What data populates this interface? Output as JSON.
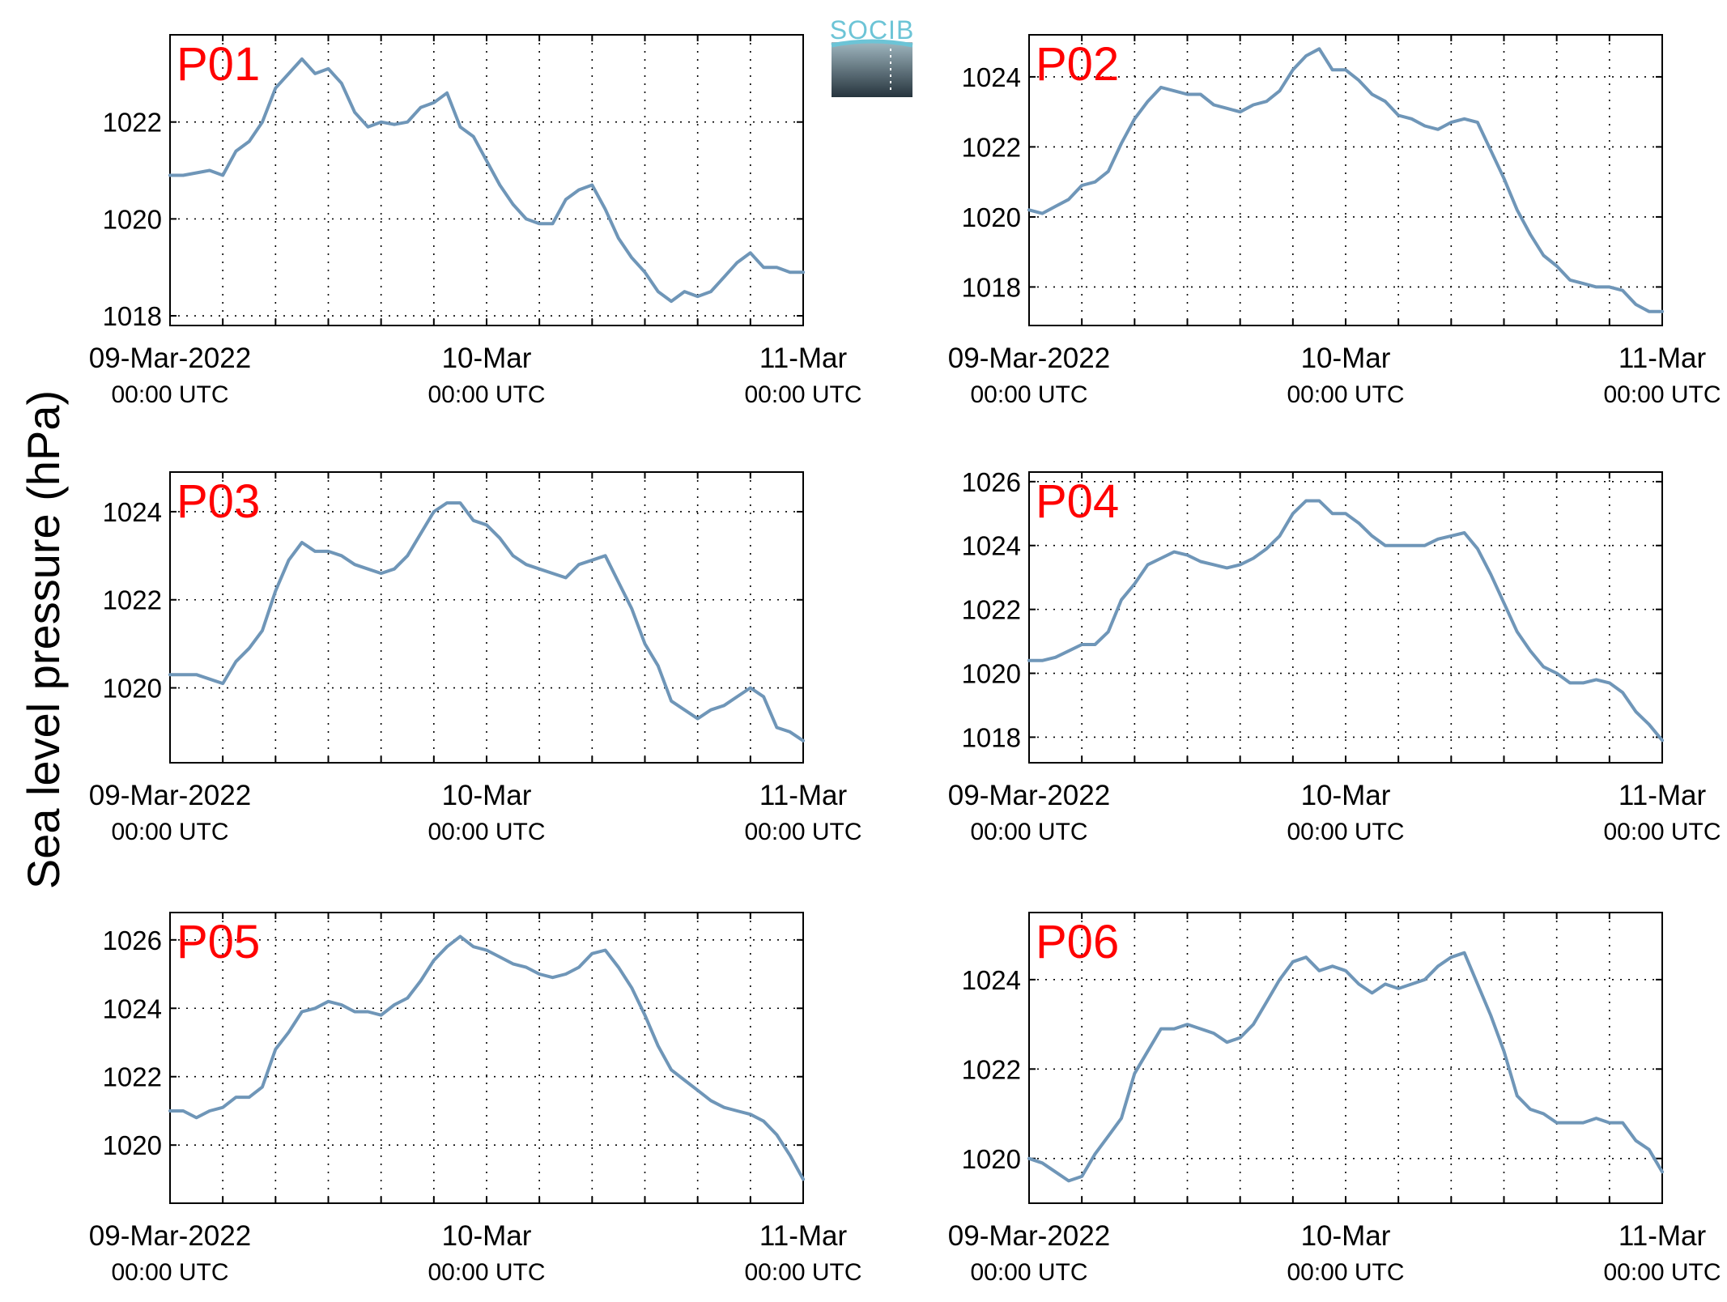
{
  "ylabel": "Sea level pressure (hPa)",
  "logo": {
    "text": "SOCIB"
  },
  "colors": {
    "line": "#6f96b8",
    "label": "#ff0000",
    "grid": "#000000"
  },
  "x_ticks": [
    {
      "x": 0,
      "line1": "09-Mar-2022",
      "line2": "00:00 UTC"
    },
    {
      "x": 24,
      "line1": "10-Mar",
      "line2": "00:00 UTC"
    },
    {
      "x": 48,
      "line1": "11-Mar",
      "line2": "00:00 UTC"
    }
  ],
  "chart_data": [
    {
      "type": "line",
      "label": "P01",
      "xlim": [
        0,
        48
      ],
      "ylim": [
        1017.8,
        1023.8
      ],
      "yticks": [
        1018,
        1020,
        1022
      ],
      "x": [
        0,
        1,
        2,
        3,
        4,
        5,
        6,
        7,
        8,
        9,
        10,
        11,
        12,
        13,
        14,
        15,
        16,
        17,
        18,
        19,
        20,
        21,
        22,
        23,
        24,
        25,
        26,
        27,
        28,
        29,
        30,
        31,
        32,
        33,
        34,
        35,
        36,
        37,
        38,
        39,
        40,
        41,
        42,
        43,
        44,
        45,
        46,
        47,
        48
      ],
      "y": [
        1020.9,
        1020.9,
        1020.95,
        1021.0,
        1020.9,
        1021.4,
        1021.6,
        1022.0,
        1022.7,
        1023.0,
        1023.3,
        1023.0,
        1023.1,
        1022.8,
        1022.2,
        1021.9,
        1022.0,
        1021.95,
        1022.0,
        1022.3,
        1022.4,
        1022.6,
        1021.9,
        1021.7,
        1021.2,
        1020.7,
        1020.3,
        1020.0,
        1019.9,
        1019.9,
        1020.4,
        1020.6,
        1020.7,
        1020.2,
        1019.6,
        1019.2,
        1018.9,
        1018.5,
        1018.3,
        1018.5,
        1018.4,
        1018.5,
        1018.8,
        1019.1,
        1019.3,
        1019.0,
        1019.0,
        1018.9,
        1018.9
      ]
    },
    {
      "type": "line",
      "label": "P02",
      "xlim": [
        0,
        48
      ],
      "ylim": [
        1016.9,
        1025.2
      ],
      "yticks": [
        1018,
        1020,
        1022,
        1024
      ],
      "x": [
        0,
        1,
        2,
        3,
        4,
        5,
        6,
        7,
        8,
        9,
        10,
        11,
        12,
        13,
        14,
        15,
        16,
        17,
        18,
        19,
        20,
        21,
        22,
        23,
        24,
        25,
        26,
        27,
        28,
        29,
        30,
        31,
        32,
        33,
        34,
        35,
        36,
        37,
        38,
        39,
        40,
        41,
        42,
        43,
        44,
        45,
        46,
        47,
        48
      ],
      "y": [
        1020.2,
        1020.1,
        1020.3,
        1020.5,
        1020.9,
        1021.0,
        1021.3,
        1022.1,
        1022.8,
        1023.3,
        1023.7,
        1023.6,
        1023.5,
        1023.5,
        1023.2,
        1023.1,
        1023.0,
        1023.2,
        1023.3,
        1023.6,
        1024.2,
        1024.6,
        1024.8,
        1024.2,
        1024.2,
        1023.9,
        1023.5,
        1023.3,
        1022.9,
        1022.8,
        1022.6,
        1022.5,
        1022.7,
        1022.8,
        1022.7,
        1021.9,
        1021.1,
        1020.2,
        1019.5,
        1018.9,
        1018.6,
        1018.2,
        1018.1,
        1018.0,
        1018.0,
        1017.9,
        1017.5,
        1017.3,
        1017.3
      ]
    },
    {
      "type": "line",
      "label": "P03",
      "xlim": [
        0,
        48
      ],
      "ylim": [
        1018.3,
        1024.9
      ],
      "yticks": [
        1020,
        1022,
        1024
      ],
      "x": [
        0,
        1,
        2,
        3,
        4,
        5,
        6,
        7,
        8,
        9,
        10,
        11,
        12,
        13,
        14,
        15,
        16,
        17,
        18,
        19,
        20,
        21,
        22,
        23,
        24,
        25,
        26,
        27,
        28,
        29,
        30,
        31,
        32,
        33,
        34,
        35,
        36,
        37,
        38,
        39,
        40,
        41,
        42,
        43,
        44,
        45,
        46,
        47,
        48
      ],
      "y": [
        1020.3,
        1020.3,
        1020.3,
        1020.2,
        1020.1,
        1020.6,
        1020.9,
        1021.3,
        1022.2,
        1022.9,
        1023.3,
        1023.1,
        1023.1,
        1023.0,
        1022.8,
        1022.7,
        1022.6,
        1022.7,
        1023.0,
        1023.5,
        1024.0,
        1024.2,
        1024.2,
        1023.8,
        1023.7,
        1023.4,
        1023.0,
        1022.8,
        1022.7,
        1022.6,
        1022.5,
        1022.8,
        1022.9,
        1023.0,
        1022.4,
        1021.8,
        1021.0,
        1020.5,
        1019.7,
        1019.5,
        1019.3,
        1019.5,
        1019.6,
        1019.8,
        1020.0,
        1019.8,
        1019.1,
        1019.0,
        1018.8
      ]
    },
    {
      "type": "line",
      "label": "P04",
      "xlim": [
        0,
        48
      ],
      "ylim": [
        1017.2,
        1026.3
      ],
      "yticks": [
        1018,
        1020,
        1022,
        1024,
        1026
      ],
      "x": [
        0,
        1,
        2,
        3,
        4,
        5,
        6,
        7,
        8,
        9,
        10,
        11,
        12,
        13,
        14,
        15,
        16,
        17,
        18,
        19,
        20,
        21,
        22,
        23,
        24,
        25,
        26,
        27,
        28,
        29,
        30,
        31,
        32,
        33,
        34,
        35,
        36,
        37,
        38,
        39,
        40,
        41,
        42,
        43,
        44,
        45,
        46,
        47,
        48
      ],
      "y": [
        1020.4,
        1020.4,
        1020.5,
        1020.7,
        1020.9,
        1020.9,
        1021.3,
        1022.3,
        1022.8,
        1023.4,
        1023.6,
        1023.8,
        1023.7,
        1023.5,
        1023.4,
        1023.3,
        1023.4,
        1023.6,
        1023.9,
        1024.3,
        1025.0,
        1025.4,
        1025.4,
        1025.0,
        1025.0,
        1024.7,
        1024.3,
        1024.0,
        1024.0,
        1024.0,
        1024.0,
        1024.2,
        1024.3,
        1024.4,
        1023.9,
        1023.1,
        1022.2,
        1021.3,
        1020.7,
        1020.2,
        1020.0,
        1019.7,
        1019.7,
        1019.8,
        1019.7,
        1019.4,
        1018.8,
        1018.4,
        1017.9
      ]
    },
    {
      "type": "line",
      "label": "P05",
      "xlim": [
        0,
        48
      ],
      "ylim": [
        1018.3,
        1026.8
      ],
      "yticks": [
        1020,
        1022,
        1024,
        1026
      ],
      "x": [
        0,
        1,
        2,
        3,
        4,
        5,
        6,
        7,
        8,
        9,
        10,
        11,
        12,
        13,
        14,
        15,
        16,
        17,
        18,
        19,
        20,
        21,
        22,
        23,
        24,
        25,
        26,
        27,
        28,
        29,
        30,
        31,
        32,
        33,
        34,
        35,
        36,
        37,
        38,
        39,
        40,
        41,
        42,
        43,
        44,
        45,
        46,
        47,
        48
      ],
      "y": [
        1021.0,
        1021.0,
        1020.8,
        1021.0,
        1021.1,
        1021.4,
        1021.4,
        1021.7,
        1022.8,
        1023.3,
        1023.9,
        1024.0,
        1024.2,
        1024.1,
        1023.9,
        1023.9,
        1023.8,
        1024.1,
        1024.3,
        1024.8,
        1025.4,
        1025.8,
        1026.1,
        1025.8,
        1025.7,
        1025.5,
        1025.3,
        1025.2,
        1025.0,
        1024.9,
        1025.0,
        1025.2,
        1025.6,
        1025.7,
        1025.2,
        1024.6,
        1023.8,
        1022.9,
        1022.2,
        1021.9,
        1021.6,
        1021.3,
        1021.1,
        1021.0,
        1020.9,
        1020.7,
        1020.3,
        1019.7,
        1019.0
      ]
    },
    {
      "type": "line",
      "label": "P06",
      "xlim": [
        0,
        48
      ],
      "ylim": [
        1019.0,
        1025.5
      ],
      "yticks": [
        1020,
        1022,
        1024
      ],
      "x": [
        0,
        1,
        2,
        3,
        4,
        5,
        6,
        7,
        8,
        9,
        10,
        11,
        12,
        13,
        14,
        15,
        16,
        17,
        18,
        19,
        20,
        21,
        22,
        23,
        24,
        25,
        26,
        27,
        28,
        29,
        30,
        31,
        32,
        33,
        34,
        35,
        36,
        37,
        38,
        39,
        40,
        41,
        42,
        43,
        44,
        45,
        46,
        47,
        48
      ],
      "y": [
        1020.0,
        1019.9,
        1019.7,
        1019.5,
        1019.6,
        1020.1,
        1020.5,
        1020.9,
        1021.9,
        1022.4,
        1022.9,
        1022.9,
        1023.0,
        1022.9,
        1022.8,
        1022.6,
        1022.7,
        1023.0,
        1023.5,
        1024.0,
        1024.4,
        1024.5,
        1024.2,
        1024.3,
        1024.2,
        1023.9,
        1023.7,
        1023.9,
        1023.8,
        1023.9,
        1024.0,
        1024.3,
        1024.5,
        1024.6,
        1023.9,
        1023.2,
        1022.4,
        1021.4,
        1021.1,
        1021.0,
        1020.8,
        1020.8,
        1020.8,
        1020.9,
        1020.8,
        1020.8,
        1020.4,
        1020.2,
        1019.7
      ]
    }
  ]
}
